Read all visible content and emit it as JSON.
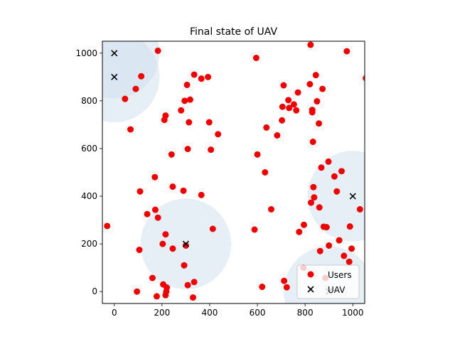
{
  "chart_data": {
    "type": "scatter",
    "title": "Final state of UAV",
    "xlabel": "",
    "ylabel": "",
    "xlim": [
      -50,
      1050
    ],
    "ylim": [
      -50,
      1050
    ],
    "xticks": [
      0,
      200,
      400,
      600,
      800,
      1000
    ],
    "yticks": [
      0,
      200,
      400,
      600,
      800,
      1000
    ],
    "grid": false,
    "legend": {
      "position": "bottom-right",
      "entries": [
        "Users",
        "UAV"
      ]
    },
    "coverage_radius": 190,
    "series": [
      {
        "name": "Users",
        "marker": "circle",
        "color": "#ee0000",
        "points": [
          [
            -30,
            275
          ],
          [
            45,
            808
          ],
          [
            68,
            680
          ],
          [
            90,
            850
          ],
          [
            95,
            0
          ],
          [
            105,
            175
          ],
          [
            108,
            420
          ],
          [
            113,
            903
          ],
          [
            138,
            325
          ],
          [
            160,
            57
          ],
          [
            170,
            480
          ],
          [
            172,
            343
          ],
          [
            178,
            -20
          ],
          [
            183,
            1010
          ],
          [
            183,
            310
          ],
          [
            203,
            200
          ],
          [
            205,
            30
          ],
          [
            210,
            720
          ],
          [
            215,
            738
          ],
          [
            215,
            240
          ],
          [
            215,
            -15
          ],
          [
            218,
            0
          ],
          [
            220,
            17
          ],
          [
            240,
            575
          ],
          [
            245,
            440
          ],
          [
            245,
            180
          ],
          [
            280,
            760
          ],
          [
            290,
            423
          ],
          [
            293,
            110
          ],
          [
            295,
            800
          ],
          [
            300,
            193
          ],
          [
            305,
            867
          ],
          [
            308,
            598
          ],
          [
            308,
            27
          ],
          [
            313,
            710
          ],
          [
            318,
            805
          ],
          [
            330,
            -25
          ],
          [
            335,
            910
          ],
          [
            335,
            40
          ],
          [
            365,
            893
          ],
          [
            365,
            405
          ],
          [
            393,
            900
          ],
          [
            398,
            710
          ],
          [
            405,
            595
          ],
          [
            413,
            263
          ],
          [
            435,
            660
          ],
          [
            588,
            260
          ],
          [
            595,
            980
          ],
          [
            600,
            575
          ],
          [
            620,
            20
          ],
          [
            632,
            500
          ],
          [
            638,
            688
          ],
          [
            658,
            345
          ],
          [
            683,
            655
          ],
          [
            703,
            718
          ],
          [
            705,
            775
          ],
          [
            710,
            865
          ],
          [
            712,
            45
          ],
          [
            723,
            18
          ],
          [
            730,
            803
          ],
          [
            733,
            770
          ],
          [
            753,
            785
          ],
          [
            763,
            760
          ],
          [
            770,
            835
          ],
          [
            775,
            250
          ],
          [
            793,
            100
          ],
          [
            795,
            280
          ],
          [
            820,
            870
          ],
          [
            823,
            1035
          ],
          [
            825,
            373
          ],
          [
            830,
            762
          ],
          [
            830,
            752
          ],
          [
            833,
            628
          ],
          [
            835,
            438
          ],
          [
            838,
            395
          ],
          [
            845,
            908
          ],
          [
            850,
            798
          ],
          [
            858,
            705
          ],
          [
            860,
            353
          ],
          [
            863,
            170
          ],
          [
            868,
            520
          ],
          [
            873,
            850
          ],
          [
            878,
            272
          ],
          [
            885,
            57
          ],
          [
            890,
            270
          ],
          [
            898,
            545
          ],
          [
            900,
            193
          ],
          [
            923,
            483
          ],
          [
            933,
            420
          ],
          [
            943,
            215
          ],
          [
            953,
            505
          ],
          [
            963,
            150
          ],
          [
            975,
            1008
          ],
          [
            985,
            125
          ],
          [
            988,
            273
          ],
          [
            995,
            180
          ],
          [
            1030,
            345
          ],
          [
            1055,
            895
          ]
        ]
      },
      {
        "name": "UAV",
        "marker": "x",
        "color": "#000000",
        "points": [
          [
            0,
            1000
          ],
          [
            0,
            900
          ],
          [
            300,
            200
          ],
          [
            1000,
            400
          ],
          [
            900,
            0
          ]
        ]
      }
    ]
  }
}
